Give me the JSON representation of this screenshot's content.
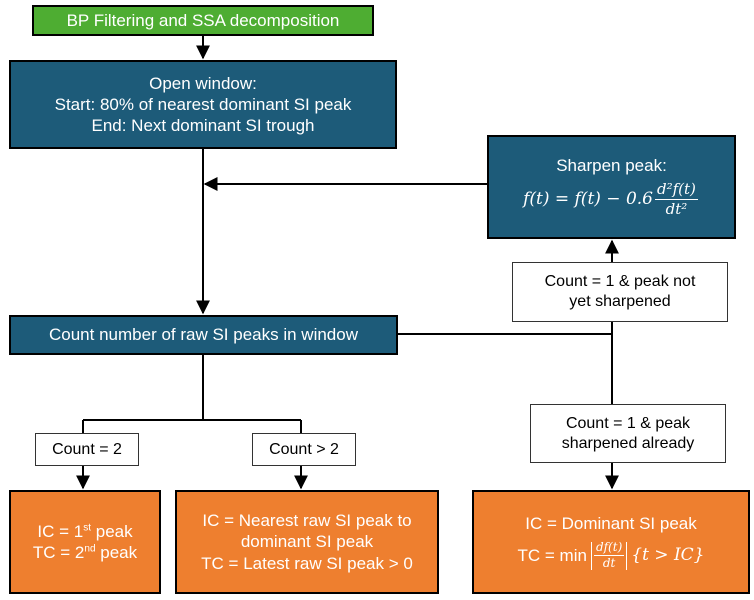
{
  "nodes": {
    "bp_filtering": "BP Filtering and SSA decomposition",
    "open_window": {
      "line1": "Open window:",
      "line2": "Start: 80% of nearest dominant SI peak",
      "line3": "End: Next dominant SI trough"
    },
    "sharpen_peak": {
      "title": "Sharpen peak:",
      "eq_lhs": "f(t) = f(t) − 0.6",
      "eq_num": "d²f(t)",
      "eq_den": "dt²"
    },
    "count_peaks": "Count number of raw SI peaks in window",
    "ic_tc_count2": {
      "ic_prefix": "IC = 1",
      "ic_sup": "st",
      "ic_suffix": " peak",
      "tc_prefix": "TC = 2",
      "tc_sup": "nd",
      "tc_suffix": " peak"
    },
    "ic_tc_countgt2": {
      "line1": "IC = Nearest raw SI peak to",
      "line2": "dominant SI peak",
      "line3": "TC = Latest raw SI peak > 0"
    },
    "ic_tc_sharpened": {
      "line1": "IC = Dominant SI peak",
      "tc_prefix": "TC = min",
      "frac_num": "df(t)",
      "frac_den": "dt",
      "tc_suffix": "{t > IC}"
    }
  },
  "labels": {
    "count_eq_2": "Count = 2",
    "count_gt_2": "Count > 2",
    "count1_not_sharpened": {
      "line1": "Count = 1 & peak not",
      "line2": "yet sharpened"
    },
    "count1_sharpened": {
      "line1": "Count = 1 & peak",
      "line2": "sharpened already"
    }
  },
  "colors": {
    "green": "#4ead32",
    "blue": "#1d5b79",
    "orange": "#ee7f2f"
  }
}
